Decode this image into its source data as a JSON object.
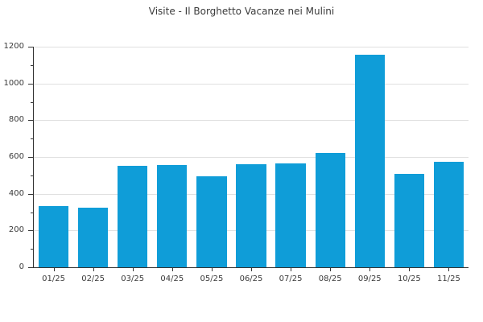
{
  "chart_data": {
    "type": "bar",
    "title": "Visite - Il Borghetto Vacanze nei Mulini",
    "categories": [
      "01/25",
      "02/25",
      "03/25",
      "04/25",
      "05/25",
      "06/25",
      "07/25",
      "08/25",
      "09/25",
      "10/25",
      "11/25"
    ],
    "values": [
      335,
      325,
      550,
      555,
      495,
      560,
      565,
      620,
      1155,
      510,
      575
    ],
    "xlabel": "",
    "ylabel": "",
    "ylim": [
      0,
      1200
    ],
    "ytick_step": 200,
    "yminor_step": 100,
    "ytick_labels": [
      "0",
      "200",
      "400",
      "600",
      "800",
      "1000",
      "1200"
    ],
    "grid": "horizontal-major",
    "legend_position": "none",
    "bar_color": "#0f9dd8",
    "grid_color": "#e0e0e0",
    "axis_color": "#333333",
    "label_color": "#3a3a3a",
    "background_color": "#ffffff"
  }
}
